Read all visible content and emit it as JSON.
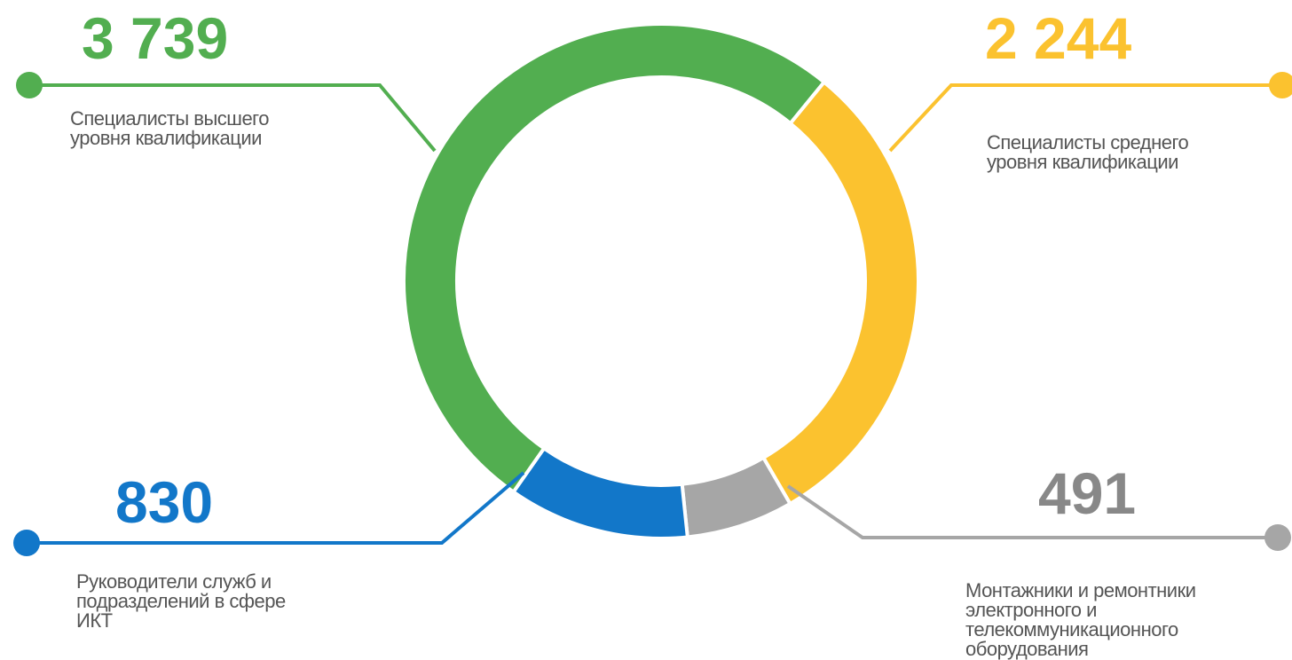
{
  "chart_data": {
    "type": "pie",
    "variant": "donut",
    "categories": [
      "Специалисты высшего уровня квалификации",
      "Специалисты среднего уровня квалификации",
      "Монтажники и ремонтники электронного и телекоммуникационного оборудования",
      "Руководители служб и подразделений в сфере ИКТ"
    ],
    "values": [
      3739,
      2244,
      491,
      830
    ],
    "colors": [
      "#52ae50",
      "#fbc22f",
      "#a6a6a6",
      "#1277c9"
    ],
    "legend": "none"
  },
  "callouts": [
    {
      "value_text": "3 739",
      "label_lines": [
        "Специалисты высшего",
        "уровня квалификации"
      ],
      "color": "#52ae50"
    },
    {
      "value_text": "2 244",
      "label_lines": [
        "Специалисты среднего",
        "уровня квалификации"
      ],
      "color": "#fbc22f"
    },
    {
      "value_text": "491",
      "label_lines": [
        "Монтажники и ремонтники",
        "электронного и",
        "телекоммуникационного",
        "оборудования"
      ],
      "color": "#888888"
    },
    {
      "value_text": "830",
      "label_lines": [
        "Руководители служб и",
        "подразделений в сфере",
        "ИКТ"
      ],
      "color": "#1277c9"
    }
  ]
}
